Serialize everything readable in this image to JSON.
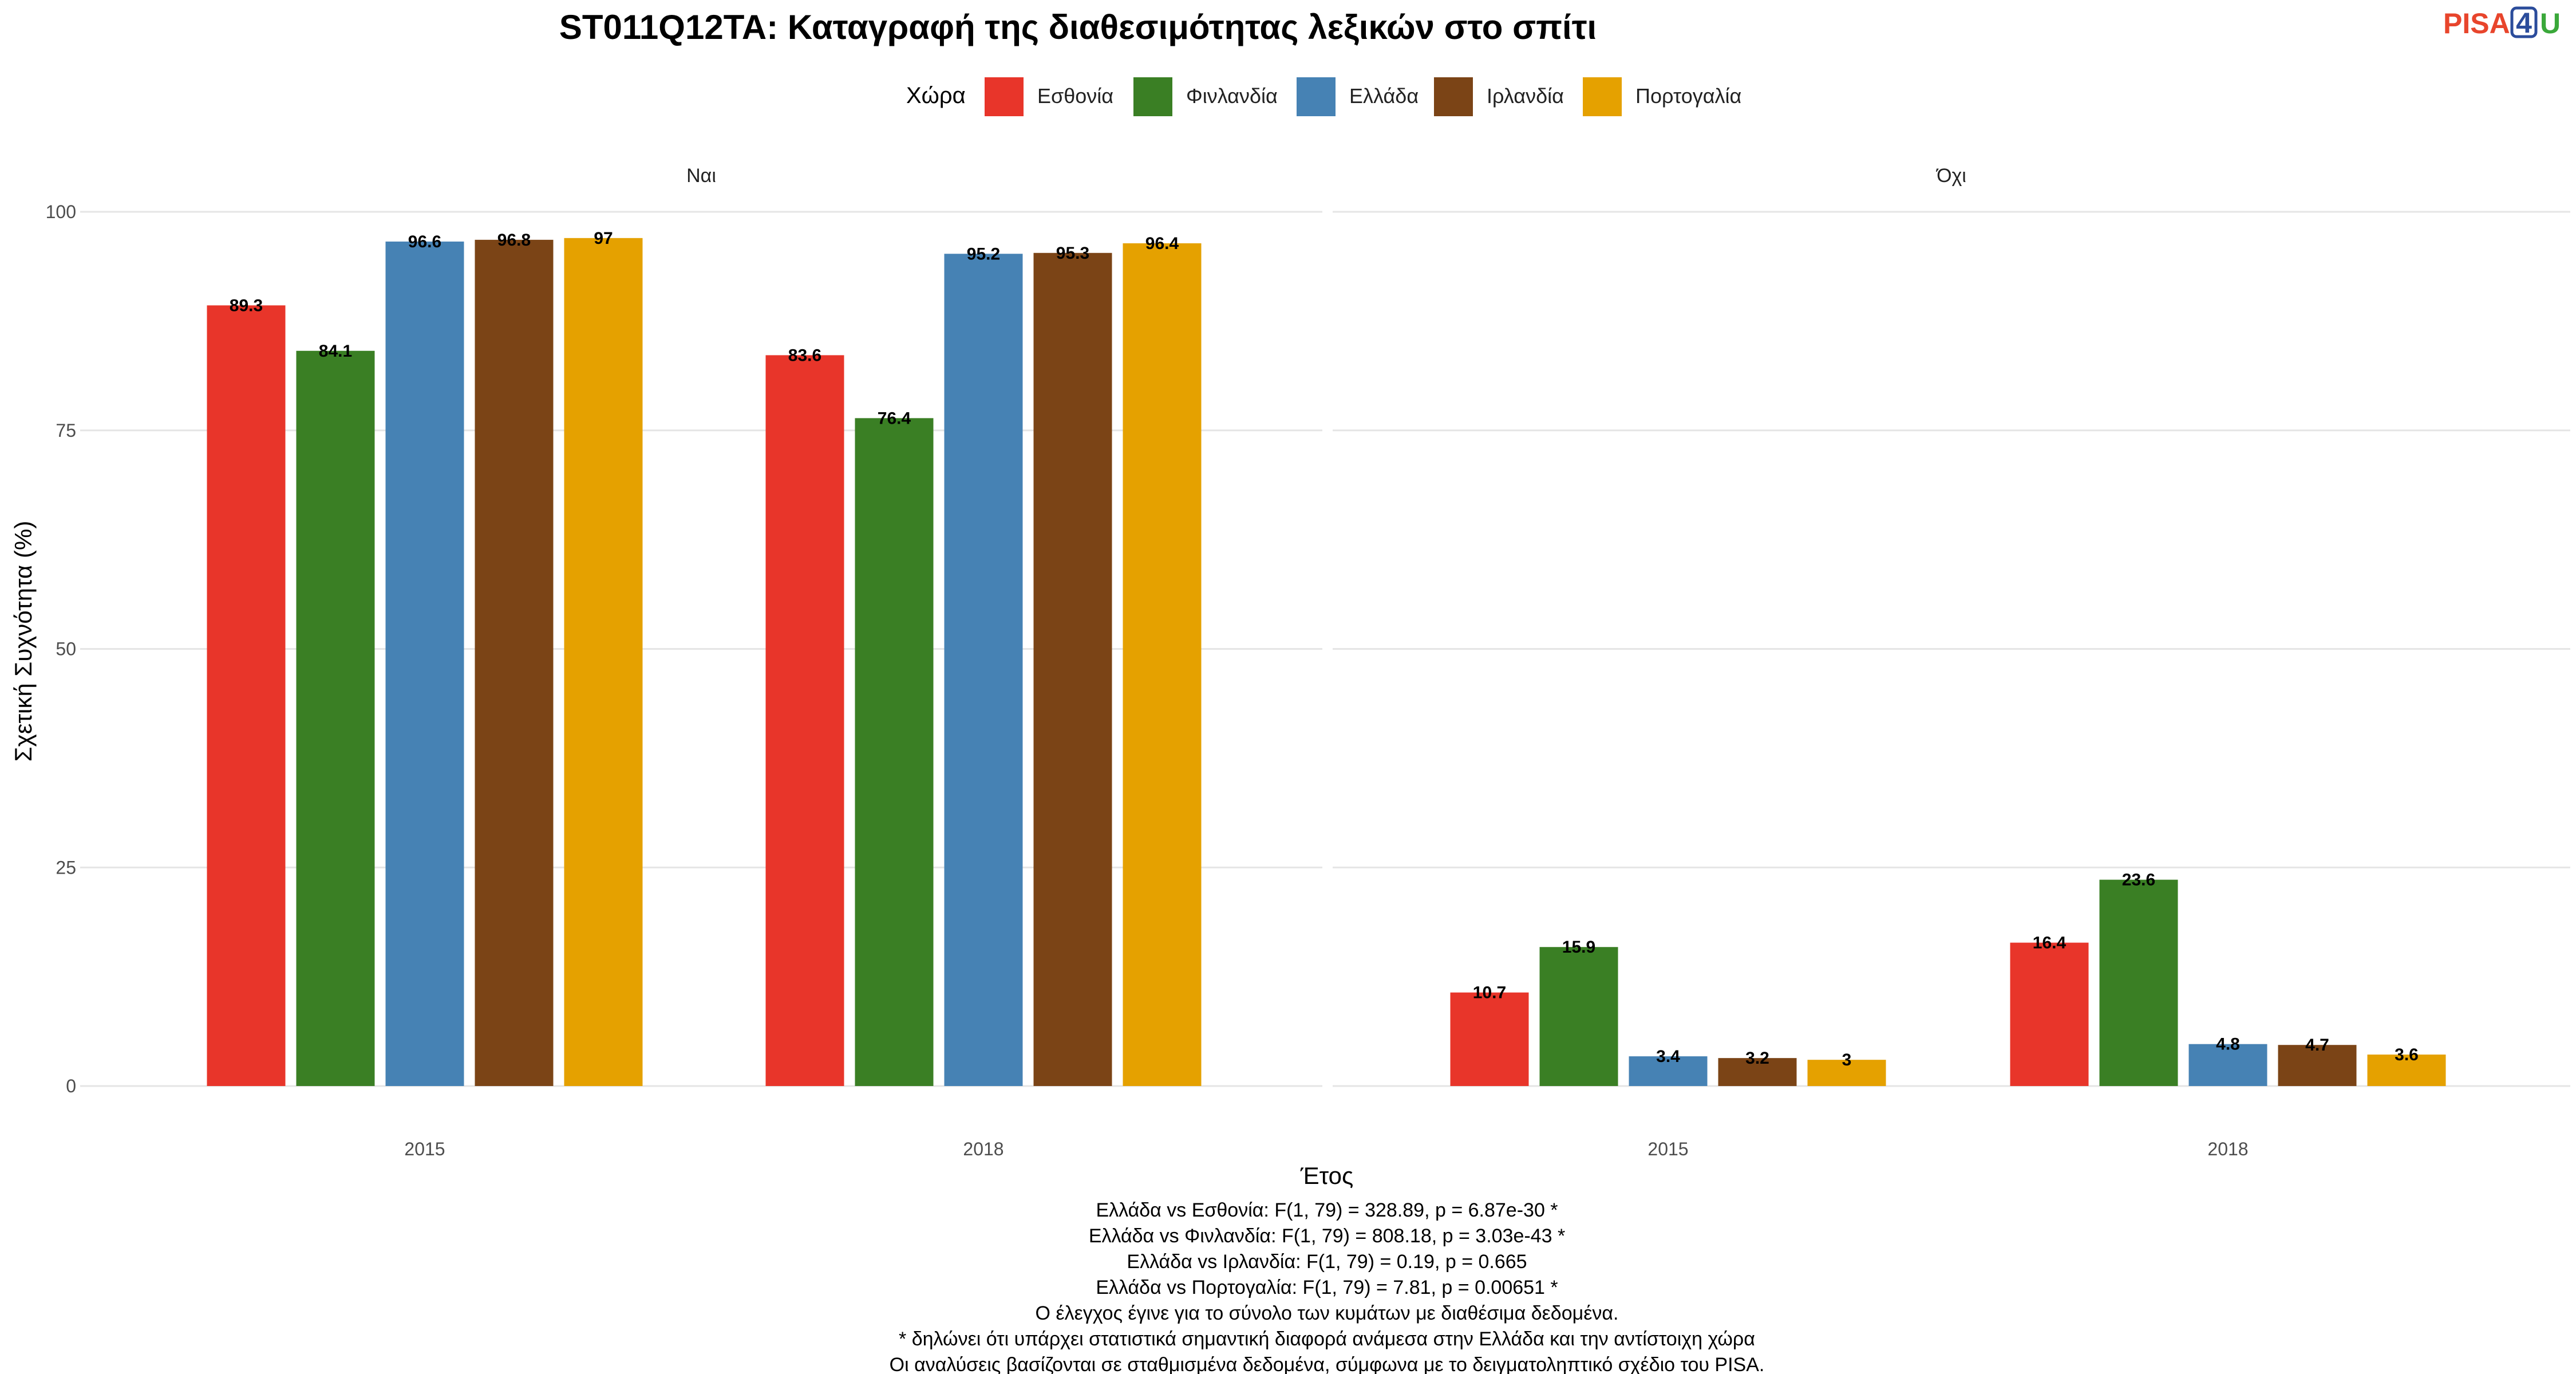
{
  "logo": {
    "text_a": "PISA",
    "text_b": "4",
    "text_c": "U",
    "color_a": "#e8452c",
    "color_b": "#2b4c9b",
    "color_c": "#3aa83a"
  },
  "chart_data": {
    "type": "bar",
    "title": "ST011Q12TA: Καταγραφή της διαθεσιμότητας λεξικών στο σπίτι",
    "xlabel": "Έτος",
    "ylabel": "Σχετική Συχνότητα (%)",
    "ylim": [
      0,
      100
    ],
    "yticks": [
      0,
      25,
      50,
      75,
      100
    ],
    "grid": true,
    "legend": {
      "title": "Χώρα",
      "position": "top",
      "entries": [
        {
          "name": "Εσθονία",
          "color": "#e8352a"
        },
        {
          "name": "Φινλανδία",
          "color": "#3a7f24"
        },
        {
          "name": "Ελλάδα",
          "color": "#4682b4"
        },
        {
          "name": "Ιρλανδία",
          "color": "#7b4416"
        },
        {
          "name": "Πορτογαλία",
          "color": "#e5a100"
        }
      ]
    },
    "categories": [
      "2015",
      "2018"
    ],
    "panels": [
      {
        "facet": "Ναι",
        "series": [
          {
            "name": "Εσθονία",
            "values": [
              89.3,
              83.6
            ],
            "labels": [
              "89.3",
              "83.6"
            ]
          },
          {
            "name": "Φινλανδία",
            "values": [
              84.1,
              76.4
            ],
            "labels": [
              "84.1",
              "76.4"
            ]
          },
          {
            "name": "Ελλάδα",
            "values": [
              96.6,
              95.2
            ],
            "labels": [
              "96.6",
              "95.2"
            ]
          },
          {
            "name": "Ιρλανδία",
            "values": [
              96.8,
              95.3
            ],
            "labels": [
              "96.8",
              "95.3"
            ]
          },
          {
            "name": "Πορτογαλία",
            "values": [
              97,
              96.4
            ],
            "labels": [
              "97",
              "96.4"
            ]
          }
        ]
      },
      {
        "facet": "Όχι",
        "series": [
          {
            "name": "Εσθονία",
            "values": [
              10.7,
              16.4
            ],
            "labels": [
              "10.7",
              "16.4"
            ]
          },
          {
            "name": "Φινλανδία",
            "values": [
              15.9,
              23.6
            ],
            "labels": [
              "15.9",
              "23.6"
            ]
          },
          {
            "name": "Ελλάδα",
            "values": [
              3.4,
              4.8
            ],
            "labels": [
              "3.4",
              "4.8"
            ]
          },
          {
            "name": "Ιρλανδία",
            "values": [
              3.2,
              4.7
            ],
            "labels": [
              "3.2",
              "4.7"
            ]
          },
          {
            "name": "Πορτογαλία",
            "values": [
              3,
              3.6
            ],
            "labels": [
              "3",
              "3.6"
            ]
          }
        ]
      }
    ],
    "caption": [
      "Ελλάδα vs Εσθονία: F(1, 79) = 328.89, p = 6.87e-30 *",
      "Ελλάδα vs Φινλανδία: F(1, 79) = 808.18, p = 3.03e-43 *",
      "Ελλάδα vs Ιρλανδία: F(1, 79) = 0.19, p = 0.665",
      "Ελλάδα vs Πορτογαλία: F(1, 79) = 7.81, p = 0.00651 *",
      "Ο έλεγχος έγινε για το σύνολο των κυμάτων με διαθέσιμα δεδομένα.",
      "* δηλώνει ότι υπάρχει στατιστικά σημαντική διαφορά ανάμεσα στην Ελλάδα και την αντίστοιχη χώρα",
      "Οι αναλύσεις βασίζονται σε σταθμισμένα δεδομένα, σύμφωνα με το δειγματοληπτικό σχέδιο του PISA."
    ]
  }
}
